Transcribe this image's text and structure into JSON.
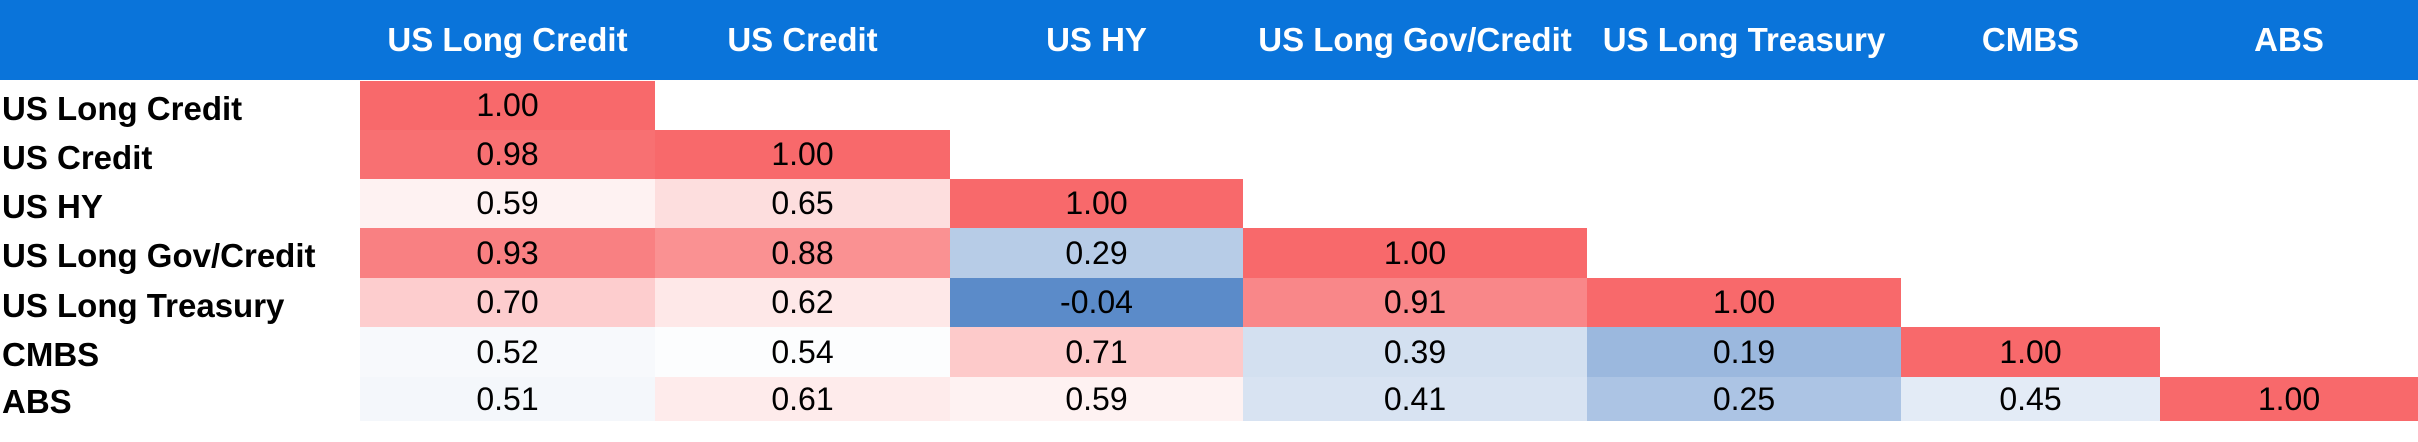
{
  "chart_data": {
    "type": "heatmap",
    "title": "",
    "columns": [
      "US Long Credit",
      "US Credit",
      "US HY",
      "US Long Gov/Credit",
      "US Long Treasury",
      "CMBS",
      "ABS"
    ],
    "rows": [
      "US Long Credit",
      "US Credit",
      "US HY",
      "US Long Gov/Credit",
      "US Long Treasury",
      "CMBS",
      "ABS"
    ],
    "values": [
      [
        "1.00",
        null,
        null,
        null,
        null,
        null,
        null
      ],
      [
        "0.98",
        "1.00",
        null,
        null,
        null,
        null,
        null
      ],
      [
        "0.59",
        "0.65",
        "1.00",
        null,
        null,
        null,
        null
      ],
      [
        "0.93",
        "0.88",
        "0.29",
        "1.00",
        null,
        null,
        null
      ],
      [
        "0.70",
        "0.62",
        "-0.04",
        "0.91",
        "1.00",
        null,
        null
      ],
      [
        "0.52",
        "0.54",
        "0.71",
        "0.39",
        "0.19",
        "1.00",
        null
      ],
      [
        "0.51",
        "0.61",
        "0.59",
        "0.41",
        "0.25",
        "0.45",
        "1.00"
      ]
    ],
    "color_scale": {
      "low": "#5b8bc9",
      "mid": "#ffffff",
      "high": "#f8696b"
    }
  },
  "colors": {
    "header_bg": "#0a74da",
    "header_text": "#ffffff"
  }
}
